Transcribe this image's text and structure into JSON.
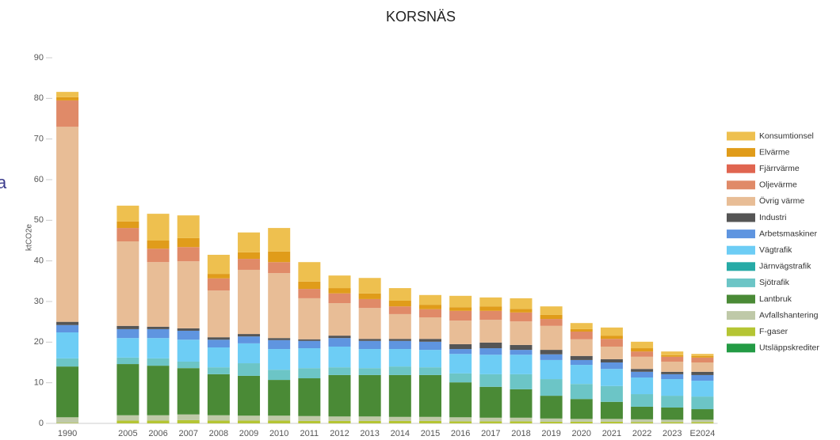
{
  "side_text": "a",
  "chart_data": {
    "type": "bar",
    "stacked": true,
    "title": "KORSNÄS",
    "y_label": "ktCO2e",
    "categories": [
      "1990",
      null,
      "2005",
      "2006",
      "2007",
      "2008",
      "2009",
      "2010",
      "2011",
      "2012",
      "2013",
      "2014",
      "2015",
      "2016",
      "2017",
      "2018",
      "2019",
      "2020",
      "2021",
      "2022",
      "2023",
      "E2024"
    ],
    "ylim": [
      0,
      90
    ],
    "yticks": [
      0,
      10,
      20,
      30,
      40,
      50,
      60,
      70,
      80,
      90
    ],
    "grid": false,
    "series": [
      {
        "name": "Utsläppskrediter",
        "color": "#239b45",
        "values": [
          0,
          null,
          0,
          0,
          0,
          0,
          0,
          0,
          0,
          0,
          0,
          0,
          0,
          0,
          0,
          0,
          0,
          0,
          0,
          0,
          0,
          0
        ]
      },
      {
        "name": "F-gaser",
        "color": "#b5c534",
        "values": [
          0.1,
          null,
          0.7,
          0.7,
          0.8,
          0.7,
          0.7,
          0.7,
          0.6,
          0.6,
          0.6,
          0.6,
          0.6,
          0.5,
          0.5,
          0.5,
          0.4,
          0.4,
          0.4,
          0.3,
          0.3,
          0.3
        ]
      },
      {
        "name": "Avfallshantering",
        "color": "#bfc9a8",
        "values": [
          1.4,
          null,
          1.3,
          1.3,
          1.4,
          1.3,
          1.2,
          1.2,
          1.2,
          1.1,
          1.1,
          1.0,
          1.0,
          1.0,
          0.9,
          0.9,
          0.8,
          0.7,
          0.7,
          0.7,
          0.6,
          0.6
        ]
      },
      {
        "name": "Lantbruk",
        "color": "#4a8a36",
        "values": [
          12.5,
          null,
          12.6,
          12.2,
          11.4,
          10.1,
          9.8,
          8.8,
          9.3,
          10.2,
          10.2,
          10.3,
          10.3,
          8.6,
          7.6,
          7.0,
          5.6,
          4.9,
          4.2,
          3.1,
          3.0,
          2.6
        ]
      },
      {
        "name": "Sjötrafik",
        "color": "#6cc5c6",
        "values": [
          2.0,
          null,
          1.6,
          1.8,
          1.6,
          1.7,
          3.1,
          2.5,
          2.5,
          1.9,
          1.7,
          2.1,
          1.9,
          2.2,
          3.1,
          3.7,
          4.1,
          3.7,
          3.9,
          3.1,
          2.9,
          3.1
        ]
      },
      {
        "name": "Järnvägstrafik",
        "color": "#26aaa6",
        "values": [
          0,
          null,
          0,
          0,
          0,
          0,
          0,
          0,
          0,
          0,
          0,
          0,
          0,
          0,
          0,
          0,
          0,
          0,
          0,
          0,
          0,
          0
        ]
      },
      {
        "name": "Vägtrafik",
        "color": "#6dcdf5",
        "values": [
          6.4,
          null,
          4.8,
          5.0,
          5.4,
          4.9,
          4.9,
          5.1,
          4.9,
          5.1,
          4.7,
          4.3,
          4.3,
          4.8,
          4.8,
          4.8,
          4.7,
          4.7,
          4.2,
          4.1,
          4.1,
          3.9
        ]
      },
      {
        "name": "Arbetsmaskiner",
        "color": "#5f95e0",
        "values": [
          1.8,
          null,
          2.2,
          2.2,
          2.2,
          1.9,
          1.7,
          2.2,
          1.8,
          2.1,
          2.0,
          2.0,
          2.0,
          1.2,
          1.6,
          1.2,
          1.4,
          1.2,
          1.6,
          1.4,
          1.2,
          1.4
        ]
      },
      {
        "name": "Industri",
        "color": "#555555",
        "values": [
          0.8,
          null,
          0.8,
          0.6,
          0.6,
          0.6,
          0.6,
          0.5,
          0.4,
          0.6,
          0.5,
          0.5,
          0.7,
          1.2,
          1.4,
          1.2,
          1.1,
          1.0,
          0.8,
          0.7,
          0.6,
          0.8
        ]
      },
      {
        "name": "Övrig värme",
        "color": "#e8bd96",
        "values": [
          48,
          null,
          20.8,
          15.9,
          16.5,
          11.5,
          15.8,
          16,
          10.1,
          8,
          7.6,
          6.1,
          5.3,
          5.8,
          5.6,
          5.8,
          5.9,
          4.1,
          3.1,
          3,
          2.5,
          2.3
        ]
      },
      {
        "name": "Oljevärme",
        "color": "#e08a68",
        "values": [
          6.5,
          null,
          3.3,
          3.3,
          3.5,
          3.0,
          2.7,
          2.7,
          2.3,
          2.4,
          2.2,
          1.9,
          2.0,
          2.4,
          2.2,
          2.2,
          1.7,
          1.9,
          1.9,
          1.3,
          1.2,
          1.2
        ]
      },
      {
        "name": "Fjärrvärme",
        "color": "#e06550",
        "values": [
          0,
          null,
          0,
          0,
          0,
          0,
          0,
          0,
          0,
          0,
          0,
          0,
          0,
          0,
          0,
          0,
          0,
          0,
          0,
          0,
          0,
          0
        ]
      },
      {
        "name": "Elvärme",
        "color": "#e09c1a",
        "values": [
          0.8,
          null,
          1.6,
          2.0,
          2.2,
          1.1,
          1.6,
          2.6,
          1.8,
          1.3,
          1.4,
          1.4,
          1.1,
          0.9,
          1.1,
          0.9,
          1.0,
          0.6,
          0.8,
          0.8,
          0.4,
          0.4
        ]
      },
      {
        "name": "Konsumtionsel",
        "color": "#eec04f",
        "values": [
          1.3,
          null,
          3.9,
          6.6,
          5.6,
          4.7,
          4.9,
          5.8,
          4.8,
          3.1,
          3.8,
          3.1,
          2.4,
          2.8,
          2.2,
          2.6,
          2.1,
          1.5,
          2.0,
          1.6,
          0.9,
          0.5
        ]
      }
    ]
  }
}
